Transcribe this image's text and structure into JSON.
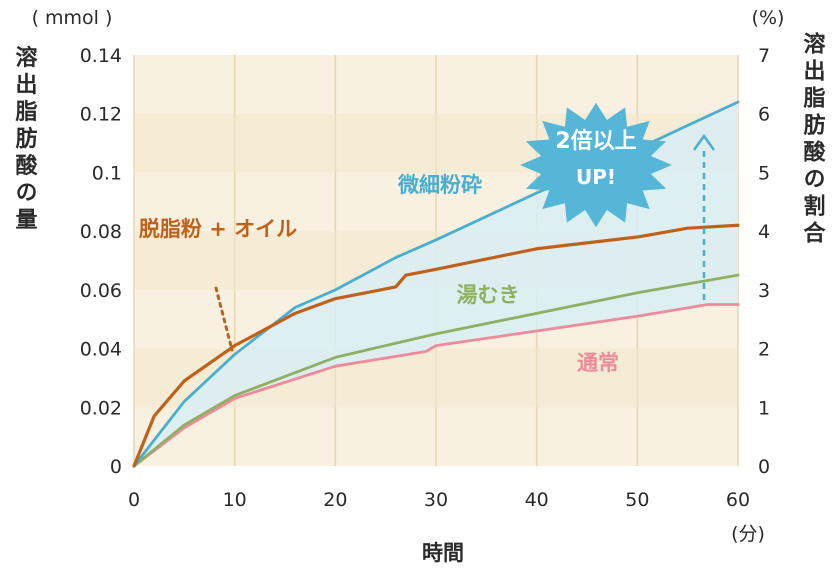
{
  "chart_data": {
    "type": "line",
    "title": "",
    "xlabel": "時間",
    "x_unit": "(分)",
    "ylabel_left": "溶出脂肪酸の量",
    "y_unit_left": "( mmol )",
    "ylabel_right": "溶出脂肪酸の割合",
    "y_unit_right": "(%)",
    "xlim": [
      0,
      60
    ],
    "ylim": [
      0,
      0.14
    ],
    "ylim_right": [
      0,
      7
    ],
    "x_ticks": [
      "0",
      "10",
      "20",
      "30",
      "40",
      "50",
      "60"
    ],
    "y_ticks_left": [
      "0",
      "0.02",
      "0.04",
      "0.06",
      "0.08",
      "0.1",
      "0.12",
      "0.14"
    ],
    "y_ticks_right": [
      "0",
      "1",
      "2",
      "3",
      "4",
      "5",
      "6",
      "7"
    ],
    "grid": true,
    "series": [
      {
        "name": "微細粉砕",
        "color": "#4aaed0",
        "x": [
          0,
          5,
          10,
          16,
          20,
          26,
          30,
          40,
          50,
          60
        ],
        "values": [
          0,
          0.022,
          0.038,
          0.054,
          0.06,
          0.071,
          0.077,
          0.093,
          0.108,
          0.124
        ]
      },
      {
        "name": "脱脂粉 + オイル",
        "color": "#c0611b",
        "x": [
          0,
          2,
          5,
          10,
          16,
          20,
          26,
          27,
          30,
          40,
          50,
          55,
          60
        ],
        "values": [
          0,
          0.017,
          0.029,
          0.041,
          0.052,
          0.057,
          0.061,
          0.065,
          0.067,
          0.074,
          0.078,
          0.081,
          0.082
        ]
      },
      {
        "name": "湯むき",
        "color": "#8fb062",
        "x": [
          0,
          5,
          10,
          20,
          30,
          40,
          50,
          60
        ],
        "values": [
          0,
          0.014,
          0.024,
          0.037,
          0.045,
          0.052,
          0.059,
          0.065
        ]
      },
      {
        "name": "通常",
        "color": "#ee8a9a",
        "x": [
          0,
          5,
          10,
          20,
          29,
          30,
          40,
          50,
          57,
          60
        ],
        "values": [
          0,
          0.013,
          0.023,
          0.034,
          0.039,
          0.041,
          0.046,
          0.051,
          0.055,
          0.055
        ]
      }
    ],
    "annotation": {
      "line1": "2倍以上",
      "line2": "UP!"
    },
    "colors": {
      "plot_background": "#f8f1e1",
      "band_fill": "#d9eef4",
      "burst": "#56b6d8"
    }
  }
}
